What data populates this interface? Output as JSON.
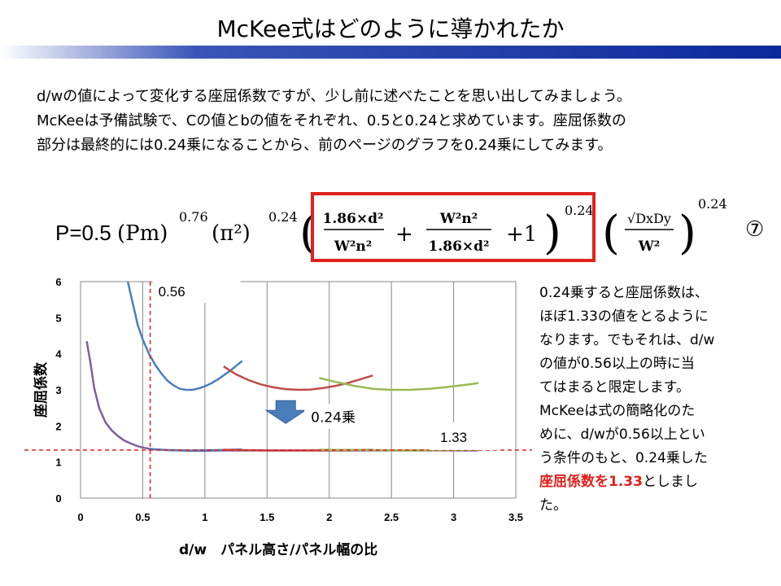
{
  "title": "McKee式はどのように導かれたか",
  "intro": [
    "d/wの値によって変化する座屈係数ですが、少し前に述べたことを思い出してみましょう。",
    "McKeeは予備試験で、Cの値とbの値をそれぞれ、0.5と0.24と求めています。座屈係数の",
    "部分は最終的には0.24乗になることから、前のページのグラフを0.24乗にしてみます。"
  ],
  "formula": {
    "lead": "P=0.5",
    "pm": "(Pm)",
    "pm_exp": "0.76",
    "pi": "(π²)",
    "pi_exp": "0.24",
    "frac1_num": "1.86×d²",
    "frac1_den": "W²n²",
    "frac2_num": "W²n²",
    "frac2_den": "1.86×d²",
    "plus1": "+1",
    "box_exp": "0.24",
    "frac3_num": "√DxDy",
    "frac3_den": "W²",
    "last_exp": "0.24",
    "eq_number": "⑦"
  },
  "side_text": {
    "lines": [
      "0.24乗すると座屈係数は、",
      "ほぼ1.33の値をとるように",
      "なります。でもそれは、d/w",
      "の値が0.56以上の時に当",
      "てはまると限定します。",
      "McKeeは式の簡略化のた",
      "めに、d/wが0.56以上とい",
      "う条件のもと、0.24乗した"
    ],
    "last_red": "座屈係数を1.33",
    "last_tail": "としまし",
    "final": "た。"
  },
  "colors": {
    "blue": "#4a7ebb",
    "red": "#be4b48",
    "green": "#98b954",
    "purple": "#7d60a0",
    "ref_line": "#e0201c",
    "box": "#e0201c",
    "arrow": "#4a7ebb"
  },
  "chart_data": {
    "type": "line",
    "xlabel": "d/w　パネル高さ/パネル幅の比",
    "ylabel": "座屈係数",
    "xlim": [
      0,
      3.5
    ],
    "ylim": [
      0,
      6
    ],
    "x_ticks": [
      "0",
      "0.5",
      "1",
      "1.5",
      "2",
      "2.5",
      "3",
      "3.5"
    ],
    "y_ticks": [
      "0",
      "1",
      "2",
      "3",
      "4",
      "5",
      "6"
    ],
    "grid": "vertical",
    "series": [
      {
        "color": "blue",
        "x": [
          0.38,
          0.42,
          0.46,
          0.5,
          0.55,
          0.6,
          0.65,
          0.7,
          0.75,
          0.8,
          0.85,
          0.9,
          0.95,
          1.0,
          1.05,
          1.1,
          1.15,
          1.2,
          1.25,
          1.3
        ],
        "y": [
          6.0,
          5.4,
          4.8,
          4.4,
          4.0,
          3.7,
          3.45,
          3.25,
          3.12,
          3.03,
          3.0,
          3.0,
          3.04,
          3.1,
          3.18,
          3.28,
          3.4,
          3.52,
          3.66,
          3.8
        ]
      },
      {
        "color": "red",
        "x": [
          1.15,
          1.25,
          1.35,
          1.45,
          1.55,
          1.65,
          1.75,
          1.85,
          1.95,
          2.05,
          2.15,
          2.25,
          2.35
        ],
        "y": [
          3.65,
          3.43,
          3.27,
          3.15,
          3.07,
          3.02,
          3.0,
          3.01,
          3.05,
          3.11,
          3.19,
          3.29,
          3.4
        ]
      },
      {
        "color": "green",
        "x": [
          1.92,
          2.05,
          2.2,
          2.35,
          2.5,
          2.65,
          2.8,
          2.95,
          3.1,
          3.2
        ],
        "y": [
          3.33,
          3.22,
          3.11,
          3.03,
          3.0,
          3.0,
          3.03,
          3.08,
          3.14,
          3.19
        ]
      },
      {
        "color": "purple",
        "x": [
          0.05,
          0.08,
          0.11,
          0.15,
          0.2,
          0.25,
          0.3,
          0.35,
          0.4,
          0.45,
          0.5,
          0.55,
          0.6,
          0.7,
          0.8,
          0.9,
          1.0,
          1.1,
          1.2,
          1.3,
          1.4,
          1.5,
          1.6,
          1.7,
          1.8,
          1.9,
          2.0,
          2.2,
          2.4,
          2.6,
          2.8,
          3.0,
          3.2
        ],
        "y": [
          4.35,
          3.75,
          3.05,
          2.5,
          2.1,
          1.88,
          1.72,
          1.6,
          1.52,
          1.45,
          1.4,
          1.37,
          1.35,
          1.33,
          1.32,
          1.31,
          1.31,
          1.32,
          1.32,
          1.32,
          1.32,
          1.32,
          1.32,
          1.32,
          1.32,
          1.32,
          1.32,
          1.32,
          1.32,
          1.32,
          1.32,
          1.32,
          1.32
        ]
      },
      {
        "color": "blue",
        "x": [
          0.55,
          0.7,
          0.9,
          1.1,
          1.3
        ],
        "y": [
          1.36,
          1.33,
          1.32,
          1.33,
          1.35
        ]
      },
      {
        "color": "red",
        "x": [
          1.15,
          1.5,
          1.85,
          2.2,
          2.35
        ],
        "y": [
          1.34,
          1.32,
          1.32,
          1.33,
          1.34
        ]
      },
      {
        "color": "green",
        "x": [
          1.92,
          2.3,
          2.7,
          3.0,
          3.2
        ],
        "y": [
          1.34,
          1.33,
          1.32,
          1.33,
          1.34
        ]
      }
    ],
    "ref_x": 0.56,
    "ref_y": 1.33,
    "annotations": {
      "x_ref_label": "0.56",
      "y_ref_label": "1.33",
      "arrow_label": "0.24乗"
    }
  }
}
